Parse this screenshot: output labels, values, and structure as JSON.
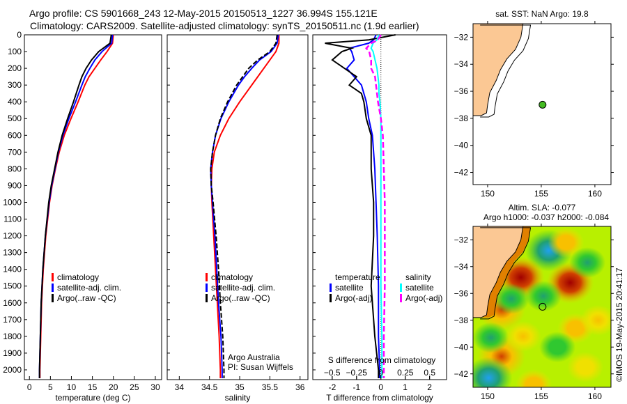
{
  "header": {
    "line1": "Argo profile: CS 5901668_243 12-May-2015 20150513_1227 36.994S 155.121E",
    "line2": "Climatology: CARS2009. Satellite-adjusted climatology: synTS_20150511.nc (1.9d earlier)"
  },
  "colors": {
    "climatology": "#ff0000",
    "satellite": "#0000ff",
    "argo": "#000000",
    "sal_satellite": "#00ffff",
    "sal_argo": "#ff00ff",
    "land": "#fbc894",
    "dot": "#44bb22"
  },
  "chart_data": [
    {
      "type": "line",
      "id": "temperature",
      "xlabel": "temperature (deg C)",
      "xlim": [
        -1.2,
        31.5
      ],
      "xticks": [
        0,
        5,
        10,
        15,
        20,
        25,
        30
      ],
      "ylim": [
        0,
        2050
      ],
      "yticks": [
        0,
        100,
        200,
        300,
        400,
        500,
        600,
        700,
        800,
        900,
        1000,
        1100,
        1200,
        1300,
        1400,
        1500,
        1600,
        1700,
        1800,
        1900,
        2000
      ],
      "depth": [
        0,
        50,
        100,
        150,
        200,
        250,
        300,
        400,
        500,
        600,
        700,
        800,
        900,
        1000,
        1200,
        1400,
        1600,
        1800,
        2000,
        2050
      ],
      "series": [
        {
          "name": "climatology",
          "color": "#ff0000",
          "values": [
            20,
            19.8,
            18.5,
            17,
            15.6,
            14.2,
            13.2,
            11.6,
            9.9,
            8.3,
            7.1,
            6.2,
            5.4,
            4.8,
            3.9,
            3.3,
            2.9,
            2.7,
            2.5,
            2.5
          ]
        },
        {
          "name": "satellite-adj. clim.",
          "color": "#0000ff",
          "values": [
            19.8,
            19.6,
            17.3,
            15.6,
            14.4,
            13.3,
            12.5,
            11,
            9.4,
            8,
            6.9,
            6.1,
            5.3,
            4.7,
            3.8,
            3.2,
            2.8,
            2.6,
            2.4,
            2.4
          ]
        },
        {
          "name": "Argo(..raw -QC)",
          "color": "#000000",
          "values": [
            19.5,
            19.2,
            16.5,
            14.8,
            13.5,
            12.5,
            11.8,
            10.5,
            9.1,
            7.8,
            6.8,
            6,
            5.2,
            4.6,
            3.8,
            3.2,
            2.8,
            2.6,
            2.4,
            2.4
          ]
        }
      ],
      "legend": [
        "climatology",
        "satellite-adj. clim.",
        "Argo(..raw -QC)"
      ]
    },
    {
      "type": "line",
      "id": "salinity",
      "xlabel": "salinity",
      "xlim": [
        33.8,
        36.13
      ],
      "xticks": [
        34,
        34.5,
        35,
        35.5,
        36
      ],
      "depth": [
        0,
        50,
        100,
        150,
        200,
        250,
        300,
        400,
        500,
        600,
        700,
        800,
        900,
        1000,
        1200,
        1400,
        1600,
        1800,
        2000,
        2050
      ],
      "series": [
        {
          "name": "climatology",
          "color": "#ff0000",
          "values": [
            35.65,
            35.65,
            35.6,
            35.5,
            35.4,
            35.3,
            35.2,
            35.0,
            34.82,
            34.68,
            34.58,
            34.54,
            34.53,
            34.54,
            34.57,
            34.6,
            34.63,
            34.66,
            34.68,
            34.68
          ]
        },
        {
          "name": "satellite-adj. clim.",
          "color": "#0000ff",
          "values": [
            35.64,
            35.62,
            35.52,
            35.33,
            35.2,
            35.08,
            34.98,
            34.82,
            34.69,
            34.6,
            34.55,
            34.52,
            34.53,
            34.55,
            34.59,
            34.62,
            34.65,
            34.69,
            34.71,
            34.71
          ]
        },
        {
          "name": "Argo(..raw -QC)",
          "color": "#000000",
          "values": [
            35.62,
            35.6,
            35.5,
            35.3,
            35.15,
            35.05,
            34.95,
            34.8,
            34.68,
            34.6,
            34.55,
            34.52,
            34.53,
            34.56,
            34.61,
            34.65,
            34.68,
            34.72,
            34.74,
            34.74
          ]
        }
      ],
      "legend": [
        "climatology",
        "satellite-adj. clim.",
        "Argo(..raw -QC)"
      ],
      "annotation": [
        "Argo Australia",
        "PI: Susan Wijffels"
      ]
    },
    {
      "type": "line",
      "id": "difference",
      "xlabel": "T difference from climatology",
      "x2label": "S difference from climatology",
      "xlim": [
        -2.8,
        2.7
      ],
      "xticks": [
        -2,
        -1,
        0,
        1,
        2
      ],
      "x2ticks": [
        -0.5,
        -0.25,
        0,
        0.25,
        0.5
      ],
      "depth": [
        0,
        30,
        50,
        80,
        100,
        150,
        200,
        250,
        300,
        350,
        400,
        500,
        600,
        800,
        1000,
        1200,
        1500,
        1800,
        2000,
        2050
      ],
      "series": [
        {
          "name": "temperature satellite",
          "unit": "T",
          "color": "#0000ff",
          "values": [
            -0.2,
            -0.3,
            -0.5,
            -1.3,
            -1.2,
            -1.1,
            -1.4,
            -1.1,
            -0.8,
            -0.7,
            -0.6,
            -0.5,
            -0.35,
            -0.25,
            -0.2,
            -0.15,
            -0.1,
            -0.1,
            -0.05,
            -0.05
          ]
        },
        {
          "name": "temperature Argo(-adj)",
          "unit": "T",
          "color": "#000000",
          "values": [
            0.6,
            -0.5,
            -2.3,
            -1.2,
            -1.6,
            -2.0,
            -1.5,
            -1.0,
            -1.3,
            -0.8,
            -0.7,
            -0.6,
            -0.4,
            -0.4,
            -0.3,
            -0.3,
            -0.4,
            -0.25,
            -0.1,
            -0.1
          ]
        },
        {
          "name": "salinity satellite",
          "unit": "S",
          "color": "#00ffff",
          "values": [
            -0.02,
            -0.04,
            -0.08,
            -0.1,
            -0.08,
            -0.06,
            -0.04,
            -0.03,
            -0.02,
            -0.02,
            -0.01,
            0,
            0,
            0,
            0,
            0,
            0,
            0.01,
            0.01,
            0.01
          ]
        },
        {
          "name": "salinity Argo(-adj)",
          "unit": "S",
          "color": "#ff00ff",
          "values": [
            0,
            -0.03,
            -0.1,
            -0.15,
            -0.12,
            -0.1,
            -0.1,
            -0.06,
            -0.05,
            -0.04,
            -0.03,
            0.0,
            0.02,
            0.03,
            0.04,
            0.04,
            0.04,
            0.03,
            0.03,
            0.03
          ]
        }
      ],
      "legend": {
        "temperature": "temperature",
        "salinity": "salinity",
        "satellite": "satellite",
        "argo": "Argo(-adj)"
      }
    },
    {
      "type": "map",
      "id": "sst",
      "title": "sat. SST: NaN Argo: 19.8",
      "lonlim": [
        148.64,
        161.5
      ],
      "latlim": [
        -42.9,
        -31.0
      ],
      "xticks": [
        150,
        155,
        160
      ],
      "yticks": [
        -32,
        -34,
        -36,
        -38,
        -40,
        -42
      ],
      "profile": {
        "lon": 155.121,
        "lat": -36.994
      }
    },
    {
      "type": "heatmap",
      "id": "sla",
      "title1": "Altim. SLA: -0.077",
      "title2": "Argo h1000: -0.037 h2000: -0.084",
      "lonlim": [
        148.64,
        161.5
      ],
      "latlim": [
        -43.0,
        -31.0
      ],
      "xticks": [
        150,
        155,
        160
      ],
      "yticks": [
        -32,
        -34,
        -36,
        -38,
        -40,
        -42
      ],
      "profile": {
        "lon": 155.121,
        "lat": -36.994
      },
      "features": [
        {
          "lon": 155.7,
          "lat": -32.8,
          "value": -0.6
        },
        {
          "lon": 153.1,
          "lat": -34.8,
          "value": 0.6
        },
        {
          "lon": 157.7,
          "lat": -35.2,
          "value": 0.6
        },
        {
          "lon": 157.3,
          "lat": -32.2,
          "value": 0.3
        },
        {
          "lon": 151.3,
          "lat": -37.2,
          "value": 0.45
        },
        {
          "lon": 151.3,
          "lat": -40.7,
          "value": 0.45
        },
        {
          "lon": 150.1,
          "lat": -42.3,
          "value": -0.5
        },
        {
          "lon": 150.3,
          "lat": -39.3,
          "value": -0.3
        },
        {
          "lon": 155.2,
          "lat": -36.2,
          "value": -0.3
        },
        {
          "lon": 159.3,
          "lat": -33.7,
          "value": -0.3
        },
        {
          "lon": 152.2,
          "lat": -36.4,
          "value": -0.2
        },
        {
          "lon": 153.3,
          "lat": -39.2,
          "value": 0.15
        },
        {
          "lon": 158.2,
          "lat": -38.6,
          "value": 0.2
        },
        {
          "lon": 160.3,
          "lat": -38.0,
          "value": 0.15
        },
        {
          "lon": 154.3,
          "lat": -42.8,
          "value": 0.2
        },
        {
          "lon": 159.1,
          "lat": -41.5,
          "value": 0.1
        },
        {
          "lon": 156.5,
          "lat": -40.0,
          "value": -0.15
        }
      ],
      "watermark": "©IMOS 19-May-2015 20:41:17"
    }
  ],
  "coast": [
    [
      148.6,
      -31
    ],
    [
      153.3,
      -31
    ],
    [
      153.1,
      -32
    ],
    [
      152.6,
      -32.9
    ],
    [
      151.8,
      -33.6
    ],
    [
      151.2,
      -34.4
    ],
    [
      150.8,
      -35.2
    ],
    [
      150.2,
      -36.1
    ],
    [
      150.0,
      -37
    ],
    [
      149.9,
      -37.6
    ],
    [
      149.4,
      -37.8
    ],
    [
      148.6,
      -37.8
    ]
  ]
}
